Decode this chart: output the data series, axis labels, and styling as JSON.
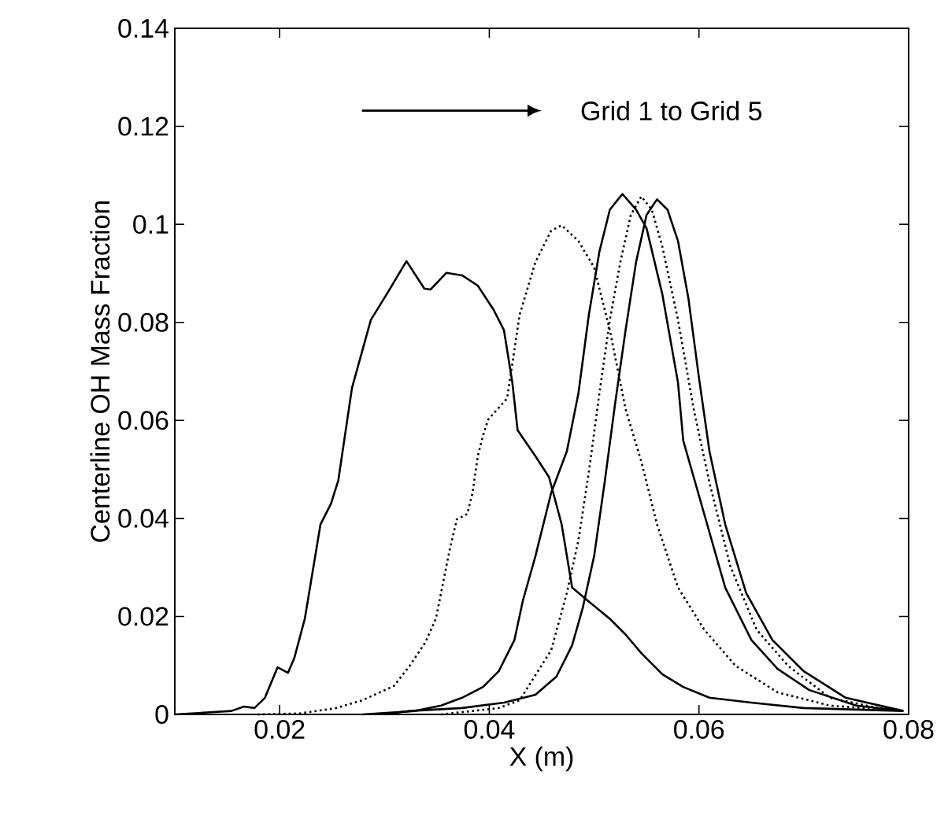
{
  "chart_data": {
    "type": "line",
    "xlabel": "X (m)",
    "ylabel": "Centerline OH Mass Fraction",
    "xlim": [
      0.01,
      0.08
    ],
    "ylim": [
      0,
      0.14
    ],
    "xticks": [
      0.02,
      0.04,
      0.06,
      0.08
    ],
    "yticks": [
      0,
      0.02,
      0.04,
      0.06,
      0.08,
      0.1,
      0.12,
      0.14
    ],
    "marker": "none",
    "annotations": [
      "Grid 1 to Grid 5"
    ],
    "series": [
      {
        "color": "#000000",
        "line_style": "solid",
        "x": [
          0.01,
          0.0154,
          0.0166,
          0.0176,
          0.0186,
          0.0198,
          0.0208,
          0.0214,
          0.0224,
          0.0239,
          0.0249,
          0.0256,
          0.0269,
          0.0287,
          0.0304,
          0.0321,
          0.0338,
          0.0344,
          0.0359,
          0.0374,
          0.0389,
          0.0404,
          0.0414,
          0.0422,
          0.0427,
          0.0444,
          0.0457,
          0.0469,
          0.0479,
          0.0494,
          0.0515,
          0.053,
          0.0545,
          0.0565,
          0.0585,
          0.061,
          0.065,
          0.07,
          0.0795
        ],
        "values": [
          0,
          0.0007,
          0.0016,
          0.0013,
          0.0034,
          0.0096,
          0.0085,
          0.0115,
          0.0195,
          0.0388,
          0.043,
          0.0478,
          0.0666,
          0.0805,
          0.0864,
          0.0925,
          0.0869,
          0.0867,
          0.0901,
          0.0896,
          0.0875,
          0.0826,
          0.0784,
          0.0677,
          0.058,
          0.0527,
          0.0484,
          0.0388,
          0.0259,
          0.0232,
          0.0195,
          0.0163,
          0.0125,
          0.0082,
          0.0056,
          0.0034,
          0.0024,
          0.0013,
          0.0007
        ]
      },
      {
        "color": "#000000",
        "line_style": "dotted",
        "x": [
          0.0179,
          0.0219,
          0.0254,
          0.0279,
          0.0309,
          0.0324,
          0.0339,
          0.0349,
          0.0354,
          0.0362,
          0.0369,
          0.0379,
          0.0384,
          0.0389,
          0.0394,
          0.0399,
          0.0417,
          0.0429,
          0.0444,
          0.0459,
          0.0469,
          0.0485,
          0.05,
          0.0515,
          0.053,
          0.0545,
          0.056,
          0.058,
          0.0605,
          0.0635,
          0.0675,
          0.0725,
          0.0775
        ],
        "values": [
          0,
          0.0002,
          0.0013,
          0.0029,
          0.0058,
          0.0099,
          0.0147,
          0.0195,
          0.0248,
          0.0334,
          0.0398,
          0.0409,
          0.0452,
          0.0527,
          0.0569,
          0.0602,
          0.0645,
          0.0816,
          0.0923,
          0.0987,
          0.0998,
          0.0966,
          0.0912,
          0.0784,
          0.0623,
          0.0516,
          0.0388,
          0.0259,
          0.0173,
          0.0099,
          0.0045,
          0.0018,
          0.001
        ]
      },
      {
        "color": "#000000",
        "line_style": "solid",
        "x": [
          0.0279,
          0.0329,
          0.0354,
          0.0374,
          0.0394,
          0.0409,
          0.0424,
          0.0432,
          0.0444,
          0.0459,
          0.0474,
          0.0485,
          0.0495,
          0.0505,
          0.0515,
          0.0527,
          0.054,
          0.055,
          0.0565,
          0.058,
          0.0585,
          0.0605,
          0.0625,
          0.065,
          0.0675,
          0.0705,
          0.075,
          0.0795
        ],
        "values": [
          0,
          0.0007,
          0.0018,
          0.0034,
          0.0056,
          0.0088,
          0.0152,
          0.0232,
          0.0323,
          0.0452,
          0.0537,
          0.0655,
          0.0816,
          0.0944,
          0.103,
          0.1062,
          0.103,
          0.0992,
          0.0858,
          0.0677,
          0.0559,
          0.0409,
          0.0259,
          0.0152,
          0.0093,
          0.005,
          0.0018,
          0.0007
        ]
      },
      {
        "color": "#000000",
        "line_style": "dotted",
        "x": [
          0.0354,
          0.0409,
          0.0429,
          0.0459,
          0.0474,
          0.0485,
          0.0495,
          0.0505,
          0.0515,
          0.0525,
          0.0535,
          0.0545,
          0.0555,
          0.0565,
          0.058,
          0.0595,
          0.061,
          0.063,
          0.0655,
          0.0685,
          0.0725,
          0.0775
        ],
        "values": [
          0,
          0.0013,
          0.0029,
          0.0131,
          0.0248,
          0.0355,
          0.0495,
          0.0655,
          0.0805,
          0.0923,
          0.1019,
          0.1057,
          0.103,
          0.0955,
          0.0805,
          0.0623,
          0.0473,
          0.0302,
          0.0173,
          0.0099,
          0.0034,
          0.0011
        ]
      },
      {
        "color": "#000000",
        "line_style": "solid",
        "x": [
          0.03,
          0.0324,
          0.0374,
          0.0414,
          0.0444,
          0.0464,
          0.0479,
          0.0489,
          0.05,
          0.051,
          0.052,
          0.053,
          0.054,
          0.055,
          0.056,
          0.057,
          0.058,
          0.059,
          0.06,
          0.061,
          0.0625,
          0.0645,
          0.067,
          0.07,
          0.074,
          0.0795
        ],
        "values": [
          0,
          0.0007,
          0.0013,
          0.0024,
          0.004,
          0.0077,
          0.0141,
          0.0216,
          0.0323,
          0.0473,
          0.0634,
          0.0784,
          0.0923,
          0.1019,
          0.1051,
          0.103,
          0.0966,
          0.0848,
          0.0687,
          0.0537,
          0.0388,
          0.0248,
          0.0152,
          0.0088,
          0.0034,
          0.0007
        ]
      }
    ]
  }
}
